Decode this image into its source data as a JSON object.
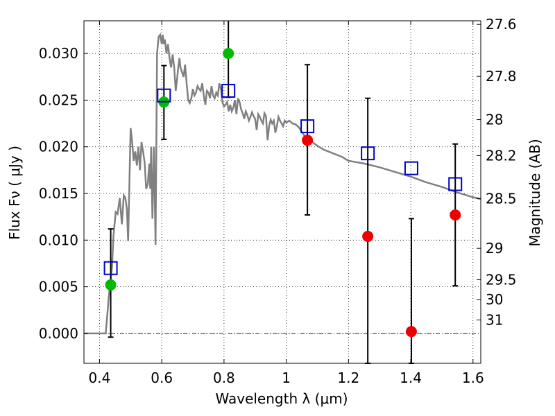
{
  "chart_data": {
    "type": "scatter",
    "title": "",
    "xlabel": "Wavelength  λ (μm)",
    "ylabel": "Flux  Fν  ( μJy )",
    "ylabel_right": "Magnitude (AB)",
    "xlim": [
      0.35,
      1.625
    ],
    "ylim": [
      -0.0032,
      0.0335
    ],
    "grid": true,
    "grid_style": "dotted",
    "x_ticks": [
      0.4,
      0.6,
      0.8,
      1.0,
      1.2,
      1.4,
      1.6
    ],
    "x_tick_labels": [
      "0.4",
      "0.6",
      "0.8",
      "1",
      "1.2",
      "1.4",
      "1.6"
    ],
    "y_ticks": [
      0.0,
      0.005,
      0.01,
      0.015,
      0.02,
      0.025,
      0.03
    ],
    "y_tick_labels": [
      "0.000",
      "0.005",
      "0.010",
      "0.015",
      "0.020",
      "0.025",
      "0.030"
    ],
    "right_ticks": [
      {
        "label": "27.6",
        "mag": 27.6
      },
      {
        "label": "27.8",
        "mag": 27.8
      },
      {
        "label": "28",
        "mag": 28.0
      },
      {
        "label": "28.2",
        "mag": 28.2
      },
      {
        "label": "28.5",
        "mag": 28.5
      },
      {
        "label": "29",
        "mag": 29.0
      },
      {
        "label": "29.5",
        "mag": 29.5
      },
      {
        "label": "30",
        "mag": 30.0
      },
      {
        "label": "31",
        "mag": 31.0
      }
    ],
    "colors": {
      "model_line": "#808080",
      "model_points": "#0000cc",
      "detections": "#00bb00",
      "upper_limits": "#ee0000",
      "errorbars": "#000000"
    },
    "model_spectrum": {
      "x": [
        0.35,
        0.42,
        0.424,
        0.43,
        0.44,
        0.445,
        0.452,
        0.458,
        0.465,
        0.472,
        0.478,
        0.483,
        0.488,
        0.492,
        0.496,
        0.5,
        0.505,
        0.51,
        0.515,
        0.52,
        0.525,
        0.53,
        0.535,
        0.54,
        0.545,
        0.55,
        0.555,
        0.56,
        0.563,
        0.566,
        0.57,
        0.575,
        0.58,
        0.585,
        0.59,
        0.595,
        0.6,
        0.603,
        0.607,
        0.61,
        0.615,
        0.62,
        0.625,
        0.63,
        0.635,
        0.64,
        0.645,
        0.65,
        0.653,
        0.657,
        0.66,
        0.665,
        0.67,
        0.675,
        0.68,
        0.685,
        0.69,
        0.695,
        0.7,
        0.705,
        0.71,
        0.715,
        0.72,
        0.725,
        0.73,
        0.735,
        0.74,
        0.745,
        0.75,
        0.755,
        0.76,
        0.765,
        0.77,
        0.775,
        0.78,
        0.785,
        0.79,
        0.795,
        0.8,
        0.805,
        0.81,
        0.815,
        0.82,
        0.825,
        0.83,
        0.835,
        0.84,
        0.845,
        0.85,
        0.855,
        0.86,
        0.865,
        0.87,
        0.875,
        0.88,
        0.885,
        0.89,
        0.895,
        0.9,
        0.905,
        0.91,
        0.915,
        0.92,
        0.925,
        0.93,
        0.935,
        0.94,
        0.945,
        0.95,
        0.955,
        0.96,
        0.965,
        0.97,
        0.975,
        0.98,
        0.985,
        0.99,
        0.995,
        1.0,
        1.01,
        1.02,
        1.03,
        1.04,
        1.05,
        1.06,
        1.08,
        1.1,
        1.12,
        1.15,
        1.18,
        1.2,
        1.25,
        1.3,
        1.35,
        1.4,
        1.45,
        1.5,
        1.55,
        1.6,
        1.625
      ],
      "y": [
        0.0,
        0.0,
        0.0016,
        0.004,
        0.007,
        0.0105,
        0.013,
        0.0128,
        0.0145,
        0.0117,
        0.0148,
        0.0145,
        0.0133,
        0.0099,
        0.016,
        0.022,
        0.0205,
        0.0185,
        0.0195,
        0.018,
        0.02,
        0.0175,
        0.0205,
        0.0195,
        0.0183,
        0.0155,
        0.016,
        0.0182,
        0.0155,
        0.02,
        0.0123,
        0.02,
        0.0095,
        0.03,
        0.0318,
        0.032,
        0.031,
        0.032,
        0.031,
        0.0315,
        0.03,
        0.031,
        0.0295,
        0.0285,
        0.0299,
        0.0285,
        0.026,
        0.0275,
        0.0285,
        0.0295,
        0.0285,
        0.028,
        0.0275,
        0.0288,
        0.0268,
        0.025,
        0.0247,
        0.0252,
        0.0262,
        0.0255,
        0.0258,
        0.0265,
        0.0262,
        0.026,
        0.0268,
        0.0255,
        0.0245,
        0.026,
        0.0258,
        0.0252,
        0.0265,
        0.0255,
        0.0252,
        0.0258,
        0.0255,
        0.0268,
        0.0262,
        0.0248,
        0.0243,
        0.0245,
        0.0248,
        0.0238,
        0.0245,
        0.0238,
        0.0242,
        0.025,
        0.0235,
        0.0252,
        0.0248,
        0.024,
        0.0236,
        0.023,
        0.0238,
        0.0234,
        0.0228,
        0.0232,
        0.0237,
        0.0233,
        0.023,
        0.0218,
        0.0235,
        0.0232,
        0.0228,
        0.0225,
        0.0236,
        0.0233,
        0.0207,
        0.0222,
        0.0229,
        0.0225,
        0.0228,
        0.0215,
        0.0222,
        0.0232,
        0.0228,
        0.0225,
        0.0222,
        0.0228,
        0.0226,
        0.0228,
        0.0225,
        0.0224,
        0.0221,
        0.0216,
        0.0211,
        0.0206,
        0.0201,
        0.0197,
        0.0193,
        0.0189,
        0.0185,
        0.0182,
        0.0178,
        0.0173,
        0.0168,
        0.0162,
        0.0157,
        0.0151,
        0.0146,
        0.0144
      ]
    },
    "model_points": {
      "x": [
        0.436,
        0.607,
        0.814,
        1.068,
        1.262,
        1.402,
        1.543
      ],
      "y": [
        0.007,
        0.0255,
        0.026,
        0.0222,
        0.0193,
        0.0177,
        0.016
      ]
    },
    "detections": {
      "x": [
        0.436,
        0.607,
        0.814
      ],
      "y": [
        0.0052,
        0.0248,
        0.03
      ],
      "err_low": [
        0.0056,
        0.004,
        0.0047
      ],
      "err_high": [
        0.006,
        0.0039,
        0.0047
      ]
    },
    "upper_limits": {
      "x": [
        1.068,
        1.262,
        1.402,
        1.543
      ],
      "y": [
        0.0207,
        0.0104,
        0.0002,
        0.0127
      ],
      "err_low": [
        0.008,
        0.0163,
        0.0122,
        0.0076
      ],
      "err_high": [
        0.0081,
        0.0148,
        0.0121,
        0.0076
      ]
    }
  }
}
